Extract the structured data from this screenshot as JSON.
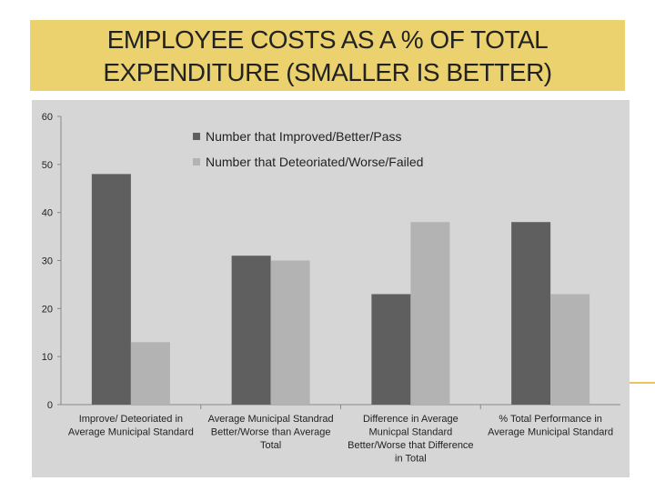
{
  "title": {
    "line1": "EMPLOYEE COSTS AS A % OF TOTAL",
    "line2": "EXPENDITURE (SMALLER IS BETTER)"
  },
  "colors": {
    "title_banner": "#ebd26e",
    "plot_background": "#d6d6d6",
    "series_improved": "#5f5f5f",
    "series_deteriorated": "#b3b3b3"
  },
  "chart_data": {
    "type": "bar",
    "title": "EMPLOYEE COSTS AS A % OF TOTAL EXPENDITURE (SMALLER IS BETTER)",
    "categories": [
      [
        "Improve/ Deteoriated in",
        "Average Municipal Standard"
      ],
      [
        "Average Municipal Standrad",
        "Better/Worse than Average",
        "Total"
      ],
      [
        "Difference in Average",
        "Municpal Standard",
        "Better/Worse that Difference",
        "in Total"
      ],
      [
        "% Total Performance in",
        "Average Municipal Standard"
      ]
    ],
    "series": [
      {
        "name": "Number that Improved/Better/Pass",
        "values": [
          48,
          31,
          23,
          38
        ],
        "color": "#5f5f5f"
      },
      {
        "name": "Number that Deteoriated/Worse/Failed",
        "values": [
          13,
          30,
          38,
          23
        ],
        "color": "#b3b3b3"
      }
    ],
    "ylim": [
      0,
      60
    ],
    "yticks": [
      0,
      10,
      20,
      30,
      40,
      50,
      60
    ],
    "legend_position": "top-center",
    "grid": false
  }
}
